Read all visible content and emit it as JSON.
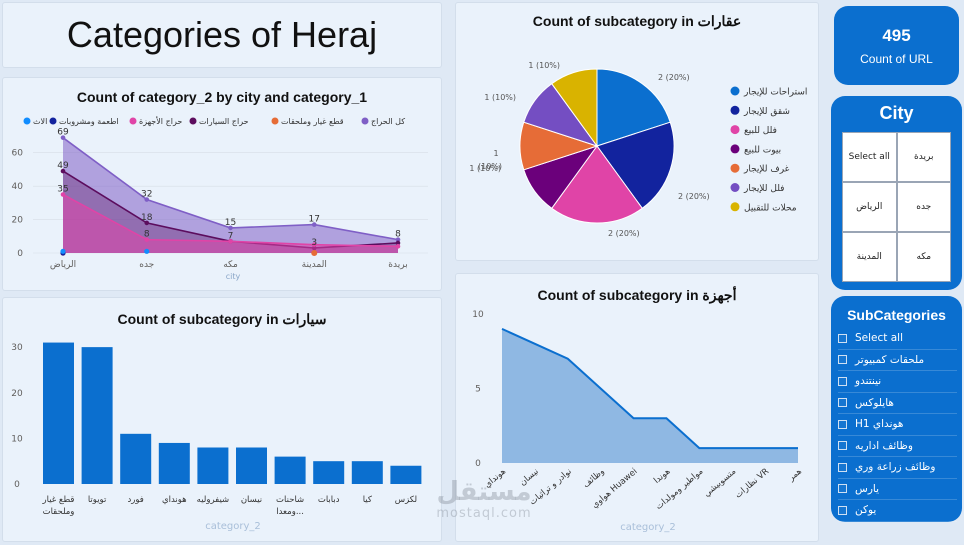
{
  "page_title": "Categories of Heraj",
  "kpi": {
    "value": "495",
    "label": "Count of URL"
  },
  "city_slicer": {
    "title": "City",
    "items": [
      "بريدة",
      "Select all",
      "جده",
      "الرياض",
      "مكه",
      "المدينة"
    ]
  },
  "subcat_slicer": {
    "title": "SubCategories",
    "items": [
      "Select all",
      "ملحقات كمبيوتر",
      "نينتندو",
      "هايلوكس",
      "H1 هونداي",
      "وظائف اداريه",
      "وظائف زراعة وري",
      "يارس",
      "يوكن"
    ]
  },
  "watermark": {
    "text": "مستقل",
    "sub": "mostaql.com"
  },
  "chart_data": [
    {
      "id": "area_chart",
      "type": "area",
      "title": "Count of category_2 by city and category_1",
      "xlabel": "city",
      "ylim": [
        0,
        70
      ],
      "yticks": [
        "0",
        "20",
        "40",
        "60"
      ],
      "categories": [
        "الرياض",
        "جده",
        "مكه",
        "المدينة",
        "بريدة"
      ],
      "legend": [
        "كل الحراج",
        "قطع غيار وملحقات",
        "حراج السيارات",
        "حراج الأجهزة",
        "اطعمة ومشروبات",
        "الاث"
      ],
      "series": [
        {
          "name": "كل الحراج",
          "values": [
            69,
            32,
            15,
            17,
            8
          ],
          "color": "#7f5fc6"
        },
        {
          "name": "حراج السيارات",
          "values": [
            49,
            18,
            7,
            3,
            6
          ],
          "color": "#5c0d5e"
        },
        {
          "name": "حراج الأجهزة",
          "values": [
            35,
            8,
            7,
            5,
            4
          ],
          "color": "#e044a7"
        },
        {
          "name": "قطع غيار وملحقات",
          "values": [
            0,
            0,
            0,
            0,
            0
          ],
          "color": "#e66c37"
        },
        {
          "name": "اطعمة ومشروبات",
          "values": [
            0,
            0,
            0,
            0,
            0
          ],
          "color": "#12239e"
        },
        {
          "name": "الاث",
          "values": [
            1,
            1,
            0,
            0,
            0
          ],
          "color": "#118dff"
        }
      ],
      "point_labels": [
        "69",
        "49",
        "35",
        "32",
        "18",
        "8",
        "15",
        "7",
        "17",
        "3",
        "8"
      ]
    },
    {
      "id": "pie_chart",
      "type": "pie",
      "title": "Count of subcategory in عقارات",
      "legend": [
        "استراحات للإيجار",
        "شقق للإيجار",
        "فلل للبيع",
        "بيوت للبيع",
        "غرف للإيجار",
        "فلل للإيجار",
        "محلات للتقبيل"
      ],
      "values": [
        2,
        2,
        2,
        1,
        1,
        1,
        1
      ],
      "colors": [
        "#0b6fcf",
        "#12239e",
        "#e044a7",
        "#6b007b",
        "#e66c37",
        "#744ec2",
        "#d9b300"
      ],
      "labels": [
        "2 (20%)",
        "2 (20%)",
        "2 (20%)",
        "1 (10%)",
        "1 (10%)",
        "1 (10%)",
        "1 (10%)"
      ]
    },
    {
      "id": "bar_chart",
      "type": "bar",
      "title": "Count of subcategory in سيارات",
      "xlabel": "category_2",
      "ylim": [
        0,
        32
      ],
      "yticks": [
        "0",
        "10",
        "20",
        "30"
      ],
      "categories": [
        "قطع غيار وملحقات",
        "تويوتا",
        "فورد",
        "هونداي",
        "شيفروليه",
        "نيسان",
        "شاحنات ومعدا...",
        "دبابات",
        "كيا",
        "لكزس"
      ],
      "values": [
        31,
        30,
        11,
        9,
        8,
        8,
        6,
        5,
        5,
        4
      ],
      "color": "#0b6fcf"
    },
    {
      "id": "devices_chart",
      "type": "area",
      "title": "Count of subcategory in أجهزة",
      "xlabel": "category_2",
      "ylim": [
        0,
        10
      ],
      "yticks": [
        "0",
        "5",
        "10"
      ],
      "categories": [
        "هونداي",
        "نيسان",
        "نوادر و تراثيات",
        "وظائف",
        "هواوي Huawei",
        "هوندا",
        "مواطير ومولدات",
        "متسوبيشي",
        "نظارات VR",
        "همر"
      ],
      "values": [
        9,
        8,
        7,
        5,
        3,
        3,
        1,
        1,
        1,
        1
      ],
      "color": "#8fb8e3"
    }
  ]
}
